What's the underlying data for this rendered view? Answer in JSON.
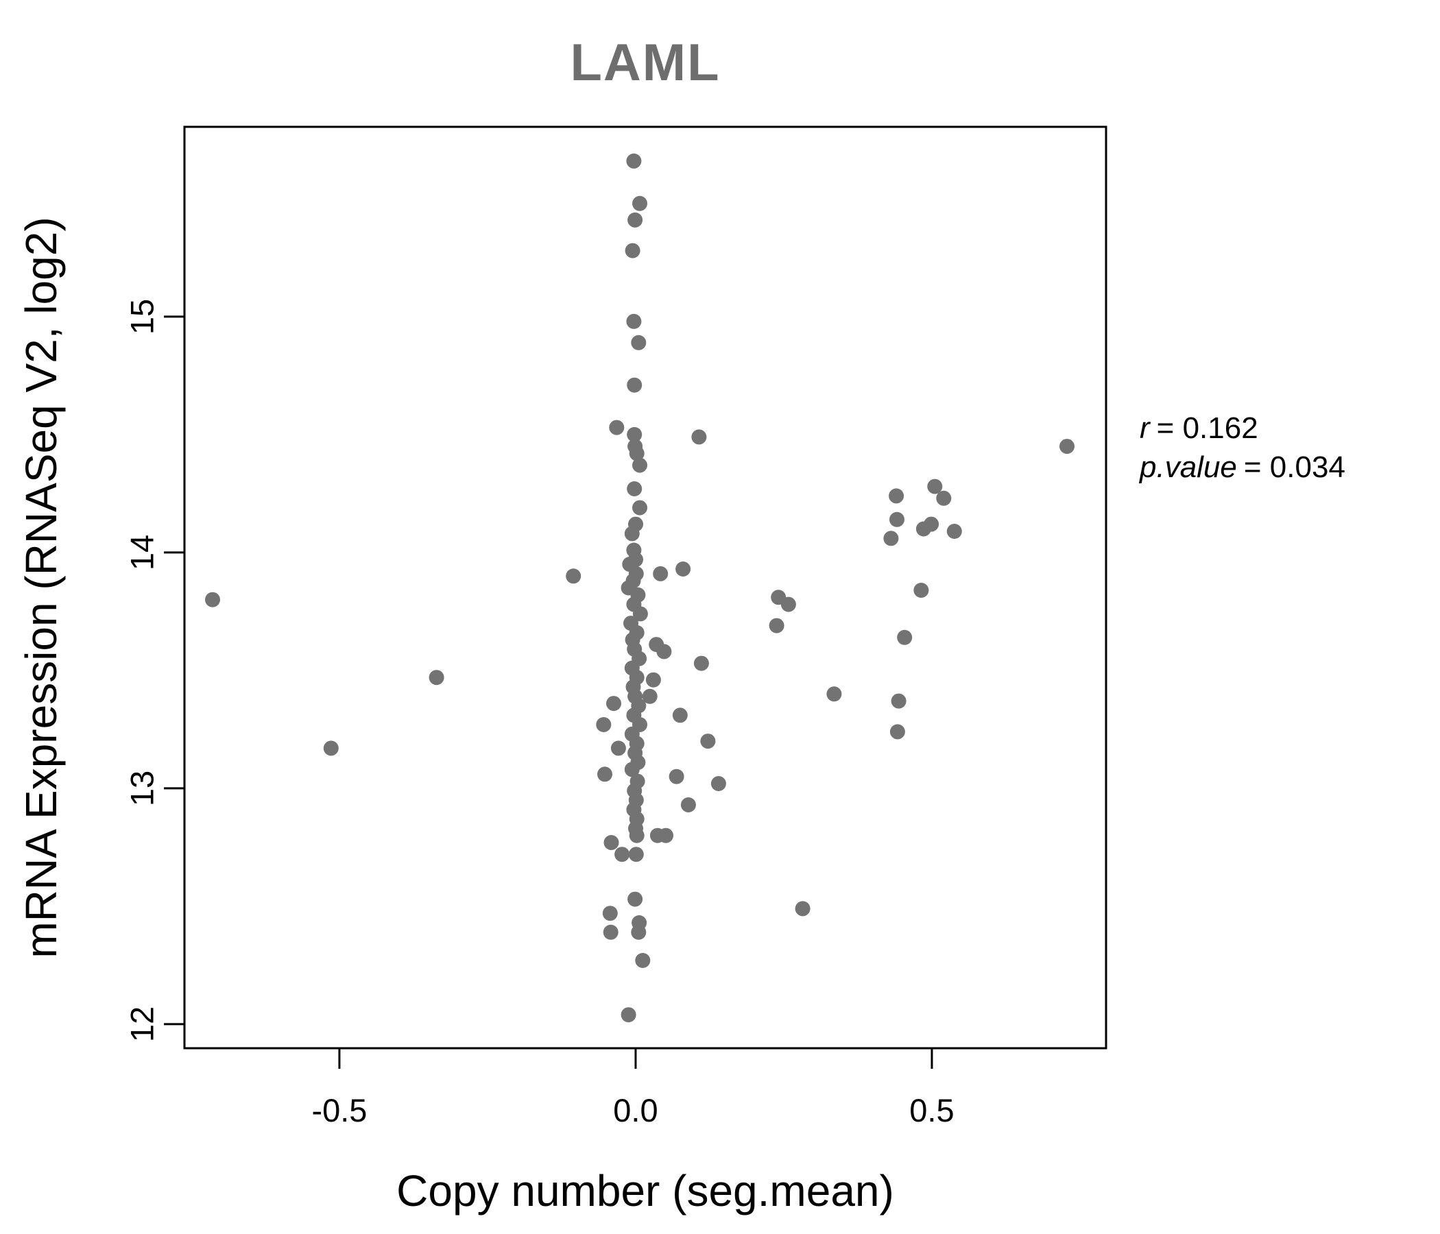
{
  "chart_data": {
    "type": "scatter",
    "title": "LAML",
    "title_color": "#6e6e6e",
    "xlabel": "Copy number (seg.mean)",
    "ylabel": "mRNA Expression (RNASeq V2, log2)",
    "point_color": "#737373",
    "point_radius_px": 11,
    "axis_color": "#000000",
    "grid": "off",
    "legend": "none",
    "x_axis": {
      "min": -0.7615,
      "max": 0.794,
      "ticks": [
        {
          "value": -0.5,
          "label": "-0.5"
        },
        {
          "value": 0.0,
          "label": "0.0"
        },
        {
          "value": 0.5,
          "label": "0.5"
        }
      ]
    },
    "y_axis": {
      "min": 11.898,
      "max": 15.805,
      "ticks": [
        {
          "value": 12,
          "label": "12"
        },
        {
          "value": 13,
          "label": "13"
        },
        {
          "value": 14,
          "label": "14"
        },
        {
          "value": 15,
          "label": "15"
        }
      ]
    },
    "annotation": {
      "lines": [
        {
          "var": "r",
          "rest": "= 0.162"
        },
        {
          "var": "p.value",
          "rest": "= 0.034"
        }
      ]
    },
    "points": [
      [
        -0.003,
        15.66
      ],
      [
        0.007,
        15.48
      ],
      [
        -0.001,
        15.41
      ],
      [
        -0.005,
        15.28
      ],
      [
        -0.003,
        14.98
      ],
      [
        0.005,
        14.89
      ],
      [
        -0.002,
        14.71
      ],
      [
        -0.032,
        14.53
      ],
      [
        -0.002,
        14.5
      ],
      [
        0.107,
        14.49
      ],
      [
        -0.001,
        14.45
      ],
      [
        0.002,
        14.42
      ],
      [
        0.007,
        14.37
      ],
      [
        -0.002,
        14.27
      ],
      [
        0.007,
        14.19
      ],
      [
        0.0,
        14.12
      ],
      [
        -0.006,
        14.08
      ],
      [
        -0.003,
        14.01
      ],
      [
        0.0,
        13.97
      ],
      [
        -0.01,
        13.95
      ],
      [
        0.042,
        13.91
      ],
      [
        0.08,
        13.93
      ],
      [
        -0.105,
        13.9
      ],
      [
        0.001,
        13.91
      ],
      [
        -0.004,
        13.88
      ],
      [
        -0.012,
        13.85
      ],
      [
        0.004,
        13.82
      ],
      [
        -0.003,
        13.78
      ],
      [
        0.008,
        13.74
      ],
      [
        -0.008,
        13.7
      ],
      [
        0.002,
        13.66
      ],
      [
        -0.005,
        13.63
      ],
      [
        0.035,
        13.61
      ],
      [
        0.048,
        13.58
      ],
      [
        -0.002,
        13.59
      ],
      [
        0.006,
        13.55
      ],
      [
        0.111,
        13.53
      ],
      [
        -0.006,
        13.51
      ],
      [
        0.03,
        13.46
      ],
      [
        0.002,
        13.47
      ],
      [
        -0.004,
        13.43
      ],
      [
        -0.336,
        13.47
      ],
      [
        0.024,
        13.39
      ],
      [
        -0.001,
        13.39
      ],
      [
        0.075,
        13.31
      ],
      [
        -0.037,
        13.36
      ],
      [
        0.005,
        13.35
      ],
      [
        -0.003,
        13.31
      ],
      [
        0.007,
        13.27
      ],
      [
        -0.054,
        13.27
      ],
      [
        -0.006,
        13.23
      ],
      [
        0.122,
        13.2
      ],
      [
        -0.029,
        13.17
      ],
      [
        -0.514,
        13.17
      ],
      [
        0.002,
        13.19
      ],
      [
        -0.001,
        13.15
      ],
      [
        0.004,
        13.11
      ],
      [
        -0.006,
        13.08
      ],
      [
        -0.052,
        13.06
      ],
      [
        0.069,
        13.05
      ],
      [
        0.14,
        13.02
      ],
      [
        0.003,
        13.03
      ],
      [
        -0.002,
        12.99
      ],
      [
        0.089,
        12.93
      ],
      [
        0.001,
        12.95
      ],
      [
        -0.003,
        12.91
      ],
      [
        0.002,
        12.87
      ],
      [
        0.0,
        12.83
      ],
      [
        0.002,
        12.8
      ],
      [
        0.037,
        12.8
      ],
      [
        0.051,
        12.8
      ],
      [
        -0.023,
        12.72
      ],
      [
        0.001,
        12.72
      ],
      [
        -0.041,
        12.77
      ],
      [
        -0.001,
        12.53
      ],
      [
        -0.043,
        12.47
      ],
      [
        0.006,
        12.43
      ],
      [
        -0.042,
        12.39
      ],
      [
        0.005,
        12.39
      ],
      [
        0.012,
        12.27
      ],
      [
        -0.012,
        12.04
      ],
      [
        0.44,
        14.24
      ],
      [
        0.505,
        14.28
      ],
      [
        0.52,
        14.23
      ],
      [
        0.441,
        14.14
      ],
      [
        0.486,
        14.1
      ],
      [
        0.499,
        14.12
      ],
      [
        0.538,
        14.09
      ],
      [
        0.431,
        14.06
      ],
      [
        0.482,
        13.84
      ],
      [
        0.241,
        13.81
      ],
      [
        0.258,
        13.78
      ],
      [
        0.238,
        13.69
      ],
      [
        0.454,
        13.64
      ],
      [
        0.335,
        13.4
      ],
      [
        0.444,
        13.37
      ],
      [
        0.442,
        13.24
      ],
      [
        0.282,
        12.49
      ],
      [
        -0.714,
        13.8
      ],
      [
        0.728,
        14.45
      ]
    ]
  },
  "layout_note": ""
}
